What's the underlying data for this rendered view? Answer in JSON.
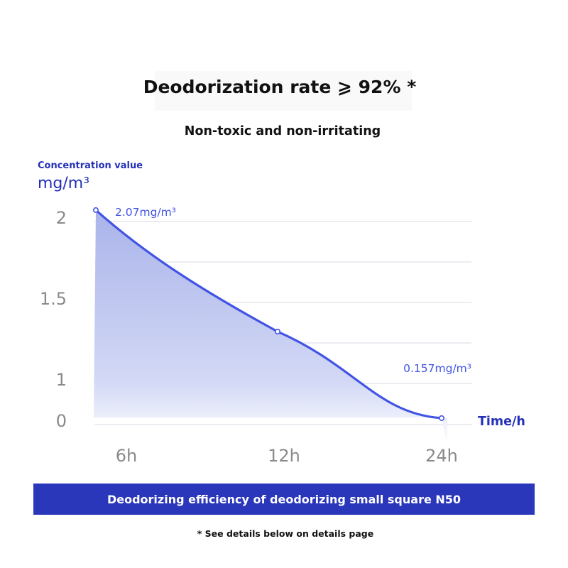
{
  "header": {
    "title": "Deodorization rate ⩾ 92% *",
    "subtitle": "Non-toxic and non-irritating"
  },
  "colors": {
    "accent": "#4254e4",
    "banner": "#2a37bb",
    "axis_text": "#2430b8",
    "tick_text": "#8a8a8a"
  },
  "chart_data": {
    "type": "area",
    "ylabel": "Concentration value",
    "yunit": "mg/m³",
    "xlabel": "Time/h",
    "x": [
      "6h",
      "12h",
      "24h"
    ],
    "y": [
      2.07,
      1.32,
      0.157
    ],
    "yticks": [
      "0",
      "1",
      "1.5",
      "2"
    ],
    "point_labels": [
      "2.07mg/m³",
      "",
      "0.157mg/m³"
    ],
    "grid": true
  },
  "footer": {
    "banner": "Deodorizing efficiency of deodorizing small square N50",
    "note": "* See details below on details page"
  }
}
